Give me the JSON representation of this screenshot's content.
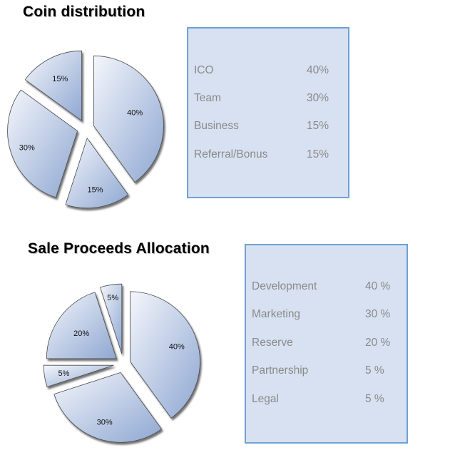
{
  "chart_data": [
    {
      "type": "pie",
      "title": "Coin distribution",
      "slices": [
        {
          "name": "ICO",
          "value": 40,
          "label": "40%"
        },
        {
          "name": "Business",
          "value": 15,
          "label": "15%"
        },
        {
          "name": "Team",
          "value": 30,
          "label": "30%"
        },
        {
          "name": "Referral/Bonus",
          "value": 15,
          "label": "15%"
        }
      ],
      "table": [
        {
          "label": "ICO",
          "value": "40%"
        },
        {
          "label": "Team",
          "value": "30%"
        },
        {
          "label": "Business",
          "value": "15%"
        },
        {
          "label": "Referral/Bonus",
          "value": "15%"
        }
      ]
    },
    {
      "type": "pie",
      "title": "Sale Proceeds Allocation",
      "slices": [
        {
          "name": "Development",
          "value": 40,
          "label": "40%"
        },
        {
          "name": "Marketing",
          "value": 30,
          "label": "30%"
        },
        {
          "name": "Partnership",
          "value": 5,
          "label": "5%"
        },
        {
          "name": "Reserve",
          "value": 20,
          "label": "20%"
        },
        {
          "name": "Legal",
          "value": 5,
          "label": "5%"
        }
      ],
      "table": [
        {
          "label": "Development",
          "value": "40 %"
        },
        {
          "label": "Marketing",
          "value": "30 %"
        },
        {
          "label": "Reserve",
          "value": "20 %"
        },
        {
          "label": "Partnership",
          "value": "5   %"
        },
        {
          "label": "Legal",
          "value": "5   %"
        }
      ]
    }
  ],
  "colors": {
    "panel_bg": "#d8e1f1",
    "panel_border": "#6fa1d4",
    "slice_light": "#f4f6fb",
    "slice_dark": "#8ea7d2",
    "slice_edge": "#4a4a4a",
    "table_text": "#8a8a8a"
  }
}
